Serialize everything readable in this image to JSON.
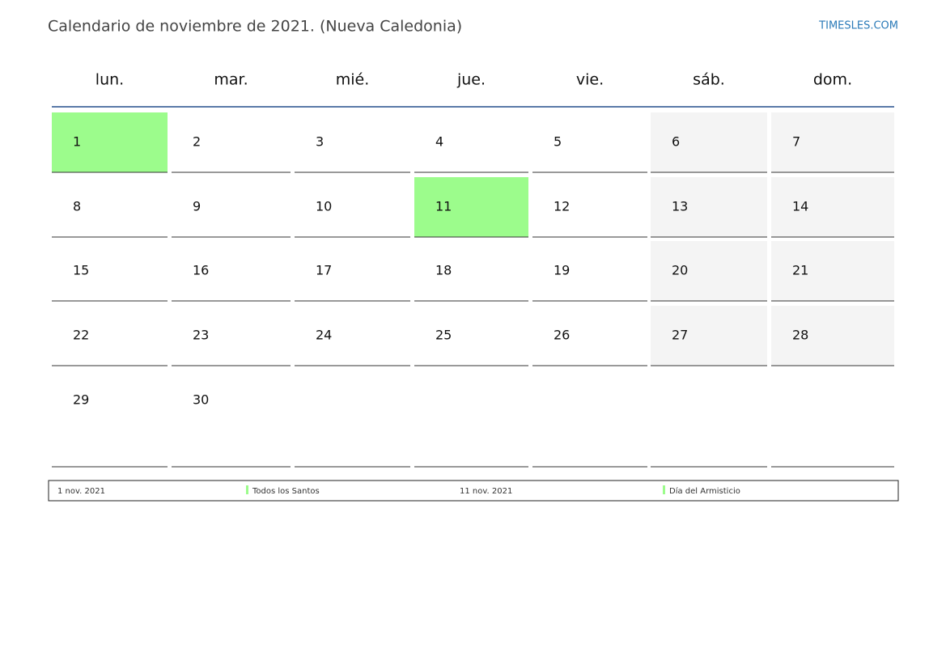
{
  "header": {
    "title": "Calendario de noviembre de 2021. (Nueva Caledonia)",
    "site": "TIMESLES.COM"
  },
  "calendar": {
    "weekdays": [
      "lun.",
      "mar.",
      "mié.",
      "jue.",
      "vie.",
      "sáb.",
      "dom."
    ],
    "weeks": [
      [
        {
          "day": 1,
          "holiday": true
        },
        {
          "day": 2
        },
        {
          "day": 3
        },
        {
          "day": 4
        },
        {
          "day": 5
        },
        {
          "day": 6
        },
        {
          "day": 7
        }
      ],
      [
        {
          "day": 8
        },
        {
          "day": 9
        },
        {
          "day": 10
        },
        {
          "day": 11,
          "holiday": true
        },
        {
          "day": 12
        },
        {
          "day": 13
        },
        {
          "day": 14
        }
      ],
      [
        {
          "day": 15
        },
        {
          "day": 16
        },
        {
          "day": 17
        },
        {
          "day": 18
        },
        {
          "day": 19
        },
        {
          "day": 20
        },
        {
          "day": 21
        }
      ],
      [
        {
          "day": 22
        },
        {
          "day": 23
        },
        {
          "day": 24
        },
        {
          "day": 25
        },
        {
          "day": 26
        },
        {
          "day": 27
        },
        {
          "day": 28
        }
      ],
      [
        {
          "day": 29
        },
        {
          "day": 30
        }
      ]
    ]
  },
  "holidays": [
    {
      "date": "1 nov. 2021",
      "name": "Todos los Santos"
    },
    {
      "date": "11 nov. 2021",
      "name": "Día del Armisticio"
    }
  ]
}
